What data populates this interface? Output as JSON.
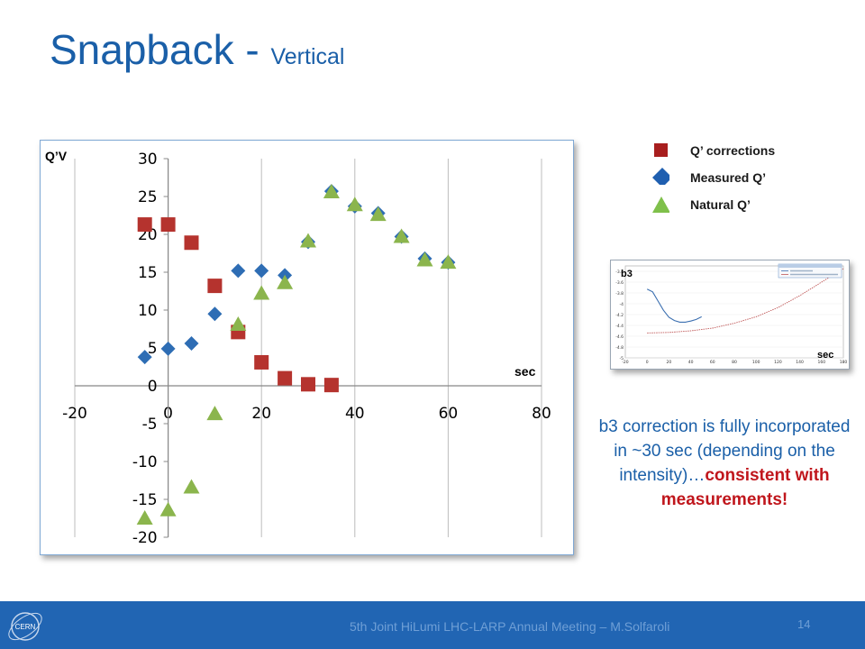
{
  "slide": {
    "title": "Snapback - ",
    "subtitle": "Vertical",
    "footer_text": "5th Joint HiLumi LHC-LARP Annual Meeting – M.Solfaroli",
    "page_number": "14",
    "logo_text": "CERN"
  },
  "note": {
    "text": "b3 correction is fully incorporated in ~30 sec (depending on the intensity)…",
    "highlight": "consistent with measurements!"
  },
  "legend": [
    {
      "label": "Q’ corrections",
      "marker": "square",
      "color": "#b5332e"
    },
    {
      "label": "Measured Q’",
      "marker": "diamond",
      "color": "#2e6db4"
    },
    {
      "label": "Natural Q’",
      "marker": "triangle",
      "color": "#8bb54d"
    }
  ],
  "chart_data": {
    "type": "scatter",
    "ylabel": "Q’V",
    "xlabel": "sec",
    "xlim": [
      -20,
      80
    ],
    "ylim": [
      -20,
      30
    ],
    "xticks": [
      -20,
      0,
      20,
      40,
      60,
      80
    ],
    "yticks": [
      -20,
      -15,
      -10,
      -5,
      0,
      5,
      10,
      15,
      20,
      25,
      30
    ],
    "grid": "vertical",
    "series": [
      {
        "name": "Q’ corrections",
        "marker": "square",
        "color": "#b5332e",
        "x": [
          -5,
          0,
          5,
          10,
          15,
          20,
          25,
          30,
          35
        ],
        "y": [
          21.3,
          21.3,
          18.9,
          13.2,
          7.1,
          3.1,
          1.0,
          0.2,
          0.1
        ]
      },
      {
        "name": "Measured Q’",
        "marker": "diamond",
        "color": "#2e6db4",
        "x": [
          -5,
          0,
          5,
          10,
          15,
          20,
          25,
          30,
          35,
          40,
          45,
          50,
          55,
          60
        ],
        "y": [
          3.8,
          4.9,
          5.6,
          9.5,
          15.2,
          15.2,
          14.6,
          19.0,
          25.7,
          23.7,
          22.8,
          19.7,
          16.8,
          16.3
        ]
      },
      {
        "name": "Natural Q’",
        "marker": "triangle",
        "color": "#8bb54d",
        "x": [
          -5,
          0,
          5,
          10,
          15,
          20,
          25,
          30,
          35,
          40,
          45,
          50,
          55,
          60
        ],
        "y": [
          -17.5,
          -16.4,
          -13.4,
          -3.7,
          8.1,
          12.2,
          13.6,
          19.1,
          25.6,
          23.9,
          22.6,
          19.7,
          16.6,
          16.3
        ]
      }
    ]
  },
  "inset_chart": {
    "type": "line",
    "ylabel": "b3",
    "xlabel": "sec",
    "xticks": [
      -20,
      0,
      20,
      40,
      60,
      80,
      100,
      120,
      140,
      160,
      180
    ],
    "yticks": [
      -3.4,
      -3.6,
      -3.8,
      -4,
      -4.2,
      -4.4,
      -4.6,
      -4.8,
      -5
    ],
    "ylim": [
      -5,
      -3.3
    ],
    "xlim": [
      -20,
      180
    ],
    "series": [
      {
        "color": "#3b6fb0",
        "x": [
          0,
          5,
          10,
          15,
          20,
          25,
          30,
          35,
          40,
          45,
          50
        ],
        "y": [
          -3.73,
          -3.78,
          -3.95,
          -4.12,
          -4.25,
          -4.31,
          -4.34,
          -4.34,
          -4.32,
          -4.29,
          -4.24
        ]
      },
      {
        "color": "#c05858",
        "x": [
          0,
          20,
          40,
          60,
          80,
          100,
          120,
          140,
          160,
          180
        ],
        "y": [
          -4.54,
          -4.53,
          -4.5,
          -4.45,
          -4.36,
          -4.24,
          -4.07,
          -3.85,
          -3.6,
          -3.35
        ]
      }
    ]
  }
}
